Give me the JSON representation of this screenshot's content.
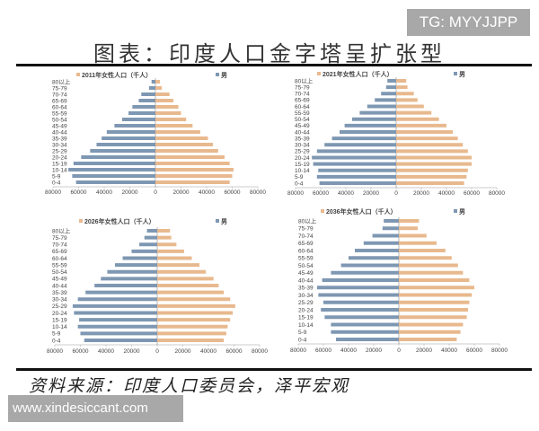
{
  "watermark_top": "TG: MYYJJPP",
  "title": "图表：印度人口金字塔呈扩张型",
  "source": "资料来源：印度人口委员会，泽平宏观",
  "watermark_bottom": "www.xindesiccant.com",
  "colors": {
    "female": "#e8b98e",
    "male": "#7e97b2"
  },
  "chart_data": [
    {
      "type": "bar",
      "orientation": "horizontal-pyramid",
      "categories": [
        "0-4",
        "5-9",
        "10-14",
        "15-19",
        "20-24",
        "25-29",
        "30-34",
        "35-39",
        "40-44",
        "45-49",
        "50-54",
        "55-59",
        "60-64",
        "65-69",
        "70-74",
        "75-79",
        "80以上"
      ],
      "series": [
        {
          "name": "2011年女性人口（千人）",
          "values": [
            58000,
            60000,
            61000,
            58000,
            54000,
            49000,
            45000,
            41000,
            35000,
            29000,
            24000,
            20000,
            18000,
            14000,
            11000,
            5000,
            3500
          ]
        },
        {
          "name": "男",
          "values": [
            62000,
            65000,
            68000,
            64000,
            58000,
            51000,
            46000,
            42000,
            38000,
            32000,
            26000,
            21000,
            18000,
            13000,
            11000,
            5000,
            3000
          ]
        }
      ],
      "xticks": [
        "80000",
        "60000",
        "40000",
        "20000",
        "0",
        "20000",
        "40000",
        "60000",
        "80000"
      ],
      "xlim": [
        -80000,
        80000
      ],
      "legend": "top"
    },
    {
      "type": "bar",
      "orientation": "horizontal-pyramid",
      "categories": [
        "0-4",
        "5-9",
        "10-14",
        "15-19",
        "20-24",
        "25-29",
        "30-34",
        "35-39",
        "40-44",
        "45-49",
        "50-54",
        "55-59",
        "60-64",
        "65-69",
        "70-74",
        "75-79",
        "80以上"
      ],
      "series": [
        {
          "name": "2021年女性人口（千人）",
          "values": [
            54000,
            56000,
            57000,
            60000,
            60000,
            57000,
            53000,
            49000,
            45000,
            40000,
            34000,
            28000,
            22000,
            17000,
            14000,
            9000,
            8000
          ]
        },
        {
          "name": "男",
          "values": [
            61000,
            63000,
            62000,
            66000,
            67000,
            63000,
            57000,
            51000,
            45000,
            41000,
            35000,
            29000,
            23000,
            17000,
            12000,
            8000,
            7000
          ]
        }
      ],
      "xticks": [
        "80000",
        "60000",
        "40000",
        "20000",
        "0",
        "20000",
        "40000",
        "60000",
        "80000"
      ],
      "xlim": [
        -80000,
        80000
      ],
      "legend": "top"
    },
    {
      "type": "bar",
      "orientation": "horizontal-pyramid",
      "categories": [
        "0-4",
        "5-9",
        "10-14",
        "15-19",
        "20-24",
        "25-29",
        "30-34",
        "35-39",
        "40-44",
        "45-49",
        "50-54",
        "55-59",
        "60-64",
        "65-69",
        "70-74",
        "75-79",
        "80以上"
      ],
      "series": [
        {
          "name": "2026年女性人口（千人）",
          "values": [
            52000,
            54000,
            55000,
            57000,
            59000,
            61000,
            57000,
            52000,
            48000,
            44000,
            38000,
            33000,
            27000,
            21000,
            15000,
            11000,
            10000
          ]
        },
        {
          "name": "男",
          "values": [
            57000,
            60000,
            62000,
            61000,
            65000,
            66000,
            62000,
            56000,
            49000,
            44000,
            39000,
            33000,
            27000,
            20000,
            14000,
            10000,
            8000
          ]
        }
      ],
      "xticks": [
        "80000",
        "60000",
        "40000",
        "20000",
        "0",
        "20000",
        "40000",
        "60000",
        "80000"
      ],
      "xlim": [
        -80000,
        80000
      ],
      "legend": "top"
    },
    {
      "type": "bar",
      "orientation": "horizontal-pyramid",
      "categories": [
        "0-4",
        "5-9",
        "10-14",
        "15-19",
        "20-24",
        "25-29",
        "30-34",
        "35-39",
        "40-44",
        "45-49",
        "50-54",
        "55-59",
        "60-64",
        "65-69",
        "70-74",
        "75-79",
        "80以上"
      ],
      "series": [
        {
          "name": "2036年女性人口（千人）",
          "values": [
            46000,
            49000,
            51000,
            54000,
            55000,
            56000,
            58000,
            60000,
            56000,
            51000,
            47000,
            42000,
            37000,
            30000,
            22000,
            15000,
            16000
          ]
        },
        {
          "name": "男",
          "values": [
            50000,
            54000,
            54000,
            59000,
            62000,
            60000,
            64000,
            65000,
            61000,
            54000,
            46000,
            40000,
            35000,
            28000,
            21000,
            13000,
            12000
          ]
        }
      ],
      "xticks": [
        "80000",
        "60000",
        "40000",
        "20000",
        "0",
        "20000",
        "40000",
        "60000",
        "80000"
      ],
      "xlim": [
        -80000,
        80000
      ],
      "legend": "top"
    }
  ]
}
